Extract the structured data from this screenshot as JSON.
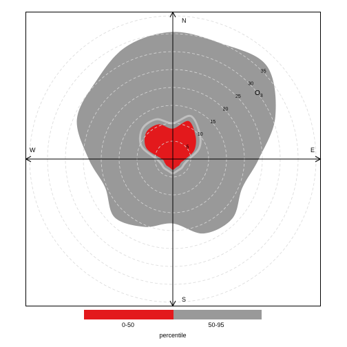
{
  "chart_data": {
    "type": "polar-area",
    "directions": {
      "north": "N",
      "south": "S",
      "east": "E",
      "west": "W"
    },
    "radial_axis": {
      "ticks": [
        5,
        10,
        15,
        20,
        25,
        30,
        35
      ],
      "tick_labels": [
        "5",
        "10",
        "15",
        "20",
        "25",
        "30",
        "35"
      ],
      "max": 40
    },
    "pollutant_label": "O",
    "pollutant_subscript": "3",
    "angles_deg": [
      0,
      22.5,
      45,
      67.5,
      90,
      112.5,
      135,
      157.5,
      180,
      202.5,
      225,
      247.5,
      270,
      292.5,
      315,
      337.5
    ],
    "series": [
      {
        "name": "50-95",
        "color": "#999999",
        "radius": [
          35.5,
          35,
          37,
          31,
          24,
          21,
          23.5,
          22.5,
          18,
          20.5,
          23,
          20.5,
          23.5,
          29,
          30.5,
          34
        ]
      },
      {
        "name": "0-50",
        "color": "#e3191c",
        "radius": [
          8.5,
          11.5,
          9,
          6.5,
          3.5,
          2.5,
          2.5,
          2.5,
          3,
          2.5,
          2.5,
          2.5,
          3,
          8,
          10.5,
          10.5
        ]
      }
    ],
    "boundary_line": {
      "color": "#bfbfbf",
      "radius": [
        10,
        13,
        10.5,
        8,
        4.5,
        3.5,
        3.5,
        3.5,
        4,
        3.5,
        3.5,
        3.5,
        4.5,
        9.5,
        12,
        12
      ]
    },
    "legend": {
      "title": "percentile",
      "entries": [
        {
          "label": "0-50",
          "color": "#e3191c"
        },
        {
          "label": "50-95",
          "color": "#999999"
        }
      ],
      "position": "bottom"
    }
  }
}
